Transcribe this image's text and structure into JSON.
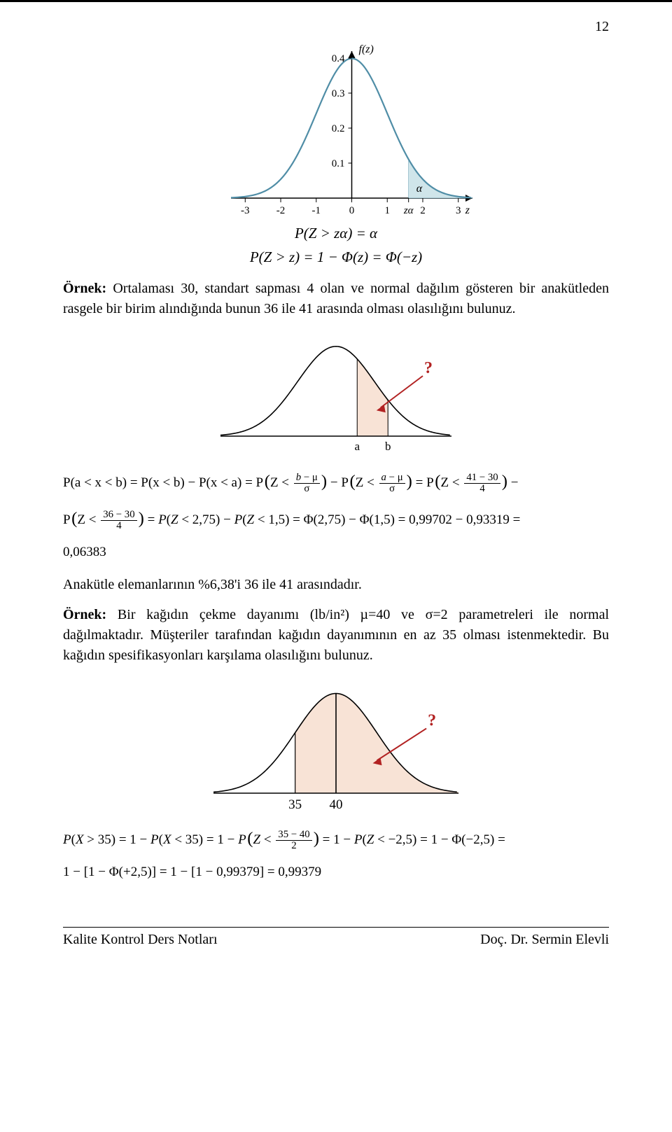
{
  "page_number": "12",
  "fig1": {
    "type": "line",
    "background_color": "#ffffff",
    "axis_color": "#000000",
    "curve_color": "#4f8da6",
    "fill_color": "#cfe5ea",
    "fill_stroke": "#4f8da6",
    "y_axis_label": "f(z)",
    "x_axis_label": "z",
    "x_ticks": [
      "-3",
      "-2",
      "-1",
      "0",
      "1",
      "2",
      "3"
    ],
    "y_ticks": [
      "0.1",
      "0.2",
      "0.3",
      "0.4"
    ],
    "z_alpha_label": "zα",
    "alpha_label": "α",
    "z_alpha_pos": 1.6
  },
  "eq_under_fig1": {
    "line1": "P(Z > zα) = α",
    "line2": "P(Z > z) = 1 − Φ(z) = Φ(−z)"
  },
  "example1": {
    "heading": "Örnek:",
    "text": "Ortalaması 30, standart sapması 4 olan ve normal dağılım gösteren bir anakütleden rasgele bir birim alındığında bunun 36 ile 41 arasında olması olasılığını bulunuz."
  },
  "fig2": {
    "type": "line",
    "background_color": "#ffffff",
    "axis_color": "#000000",
    "curve_color": "#000000",
    "fill_color": "#f8e3d6",
    "fill_stroke": "#c9a58a",
    "q_mark": "?",
    "q_color": "#b22222",
    "arrow_color": "#b22222",
    "a_label": "a",
    "b_label": "b"
  },
  "solution1": {
    "result_line": "Anakütle elemanlarının %6,38'i 36 ile 41 arasındadır."
  },
  "example2": {
    "heading": "Örnek:",
    "text": "Bir kağıdın çekme dayanımı (lb/in²) µ=40 ve σ=2 parametreleri ile normal dağılmaktadır. Müşteriler tarafından kağıdın dayanımının en az 35 olması istenmektedir. Bu kağıdın spesifikasyonları karşılama olasılığını bulunuz."
  },
  "fig3": {
    "type": "line",
    "background_color": "#ffffff",
    "axis_color": "#000000",
    "curve_color": "#000000",
    "fill_color": "#f8e3d6",
    "fill_stroke": "#c9a58a",
    "q_mark": "?",
    "q_color": "#b22222",
    "arrow_color": "#b22222",
    "left_label": "35",
    "center_label": "40"
  },
  "footer": {
    "left": "Kalite Kontrol Ders Notları",
    "right": "Doç. Dr. Sermin Elevli"
  },
  "typography": {
    "body_fontsize_pt": 15,
    "math_fontsize_pt": 14,
    "font_family": "Times New Roman"
  }
}
